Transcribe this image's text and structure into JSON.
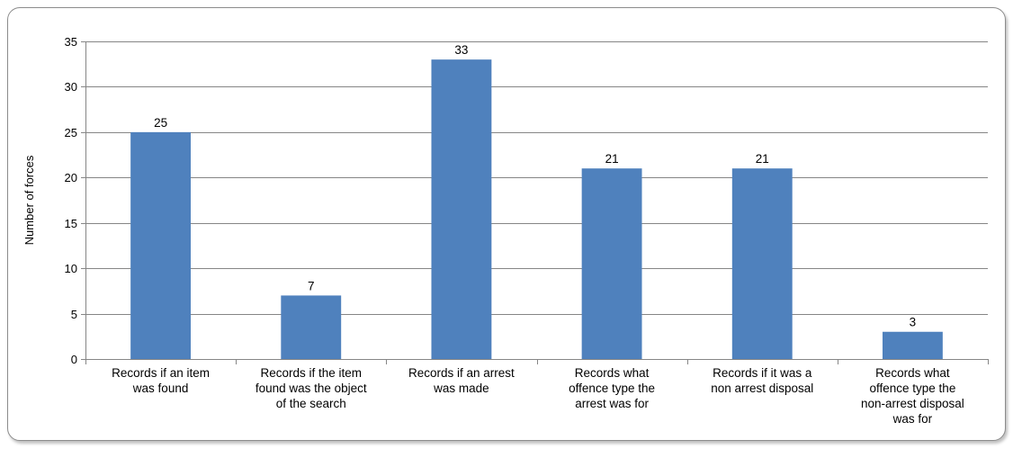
{
  "chart_data": {
    "type": "bar",
    "categories": [
      [
        "Records if an item",
        "was found"
      ],
      [
        "Records if the item",
        "found was the object",
        "of the search"
      ],
      [
        "Records if an arrest",
        "was made"
      ],
      [
        "Records what",
        "offence type the",
        "arrest was for"
      ],
      [
        "Records if it was a",
        "non arrest disposal"
      ],
      [
        "Records what",
        "offence type the",
        "non-arrest disposal",
        "was for"
      ]
    ],
    "values": [
      25,
      7,
      33,
      21,
      21,
      3
    ],
    "data_labels": [
      "25",
      "7",
      "33",
      "21",
      "21",
      "3"
    ],
    "ylabel": "Number of forces",
    "xlabel": "",
    "title": "",
    "ylim": [
      0,
      35
    ],
    "yticks": [
      0,
      5,
      10,
      15,
      20,
      25,
      30,
      35
    ],
    "grid": true,
    "bar_color": "#4f81bd",
    "grid_color": "#868686"
  }
}
